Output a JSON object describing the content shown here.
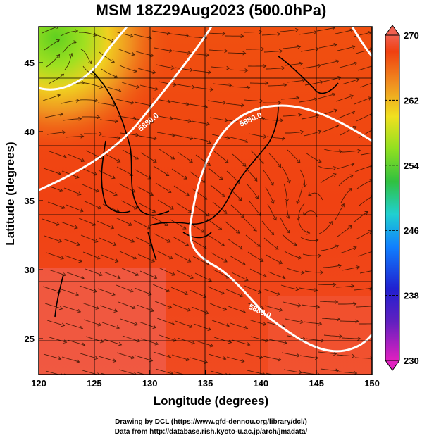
{
  "title": "MSM 18Z29Aug2023 (500.0hPa)",
  "x_axis": {
    "label": "Longitude (degrees)",
    "ticks": [
      "120",
      "125",
      "130",
      "135",
      "140",
      "145",
      "150"
    ]
  },
  "y_axis": {
    "label": "Latitude  (degrees)",
    "ticks": [
      "25",
      "30",
      "35",
      "40",
      "45"
    ]
  },
  "colorbar": {
    "ticks": [
      "270",
      "262",
      "254",
      "246",
      "238",
      "230"
    ]
  },
  "contour_labels": [
    "5880.0",
    "5880.0",
    "5880.0"
  ],
  "credits": {
    "line1": "Drawing by DCL (https://www.gfd-dennou.org/library/dcl/)",
    "line2": "Data from http://database.rish.kyoto-u.ac.jp/arch/jmadata/"
  },
  "chart_data": {
    "type": "heatmap",
    "field": "temperature (K) at 500.0hPa with wind streamlines and 5880 m height contour",
    "xlim": [
      120,
      150
    ],
    "ylim": [
      22.4,
      47.6
    ],
    "color_range": [
      230,
      270
    ],
    "contour_level": 5880.0,
    "grid": true,
    "colormap": [
      "#e040c0",
      "#2020c0",
      "#1060ff",
      "#20d0d0",
      "#30c030",
      "#a0e020",
      "#f0e020",
      "#f09020",
      "#f04010",
      "#f06050"
    ]
  }
}
